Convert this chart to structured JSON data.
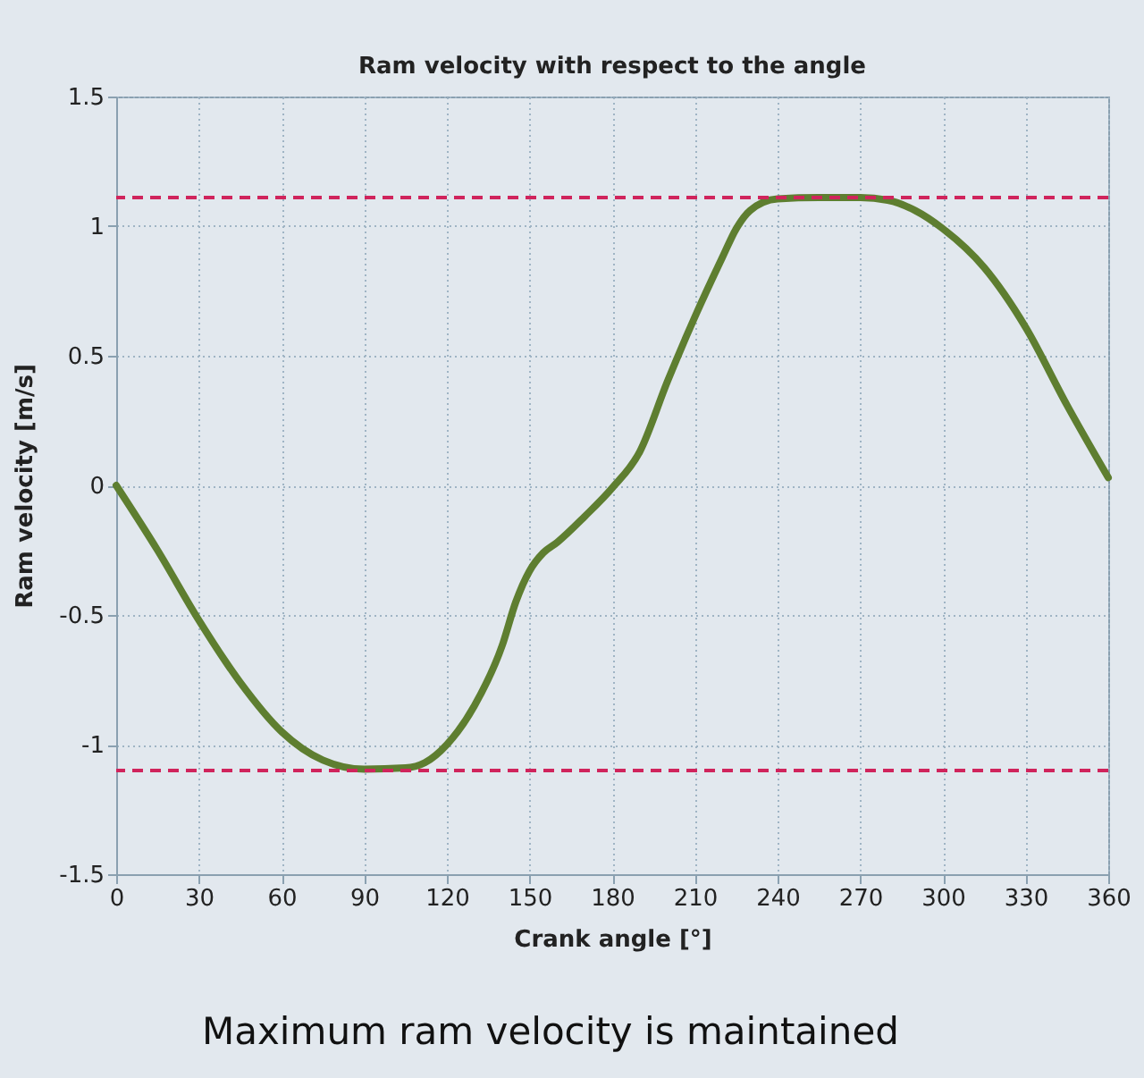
{
  "chart_data": {
    "type": "line",
    "title": "Ram velocity with respect to the angle",
    "xlabel": "Crank angle [°]",
    "ylabel": "Ram velocity [m/s]",
    "x": [
      0,
      15,
      30,
      45,
      60,
      75,
      90,
      105,
      112,
      120,
      130,
      140,
      145,
      150,
      155,
      160,
      170,
      180,
      190,
      200,
      210,
      220,
      225,
      230,
      240,
      255,
      270,
      280,
      290,
      300,
      315,
      330,
      345,
      360
    ],
    "series": [
      {
        "color": "#5e7e30",
        "values": [
          0,
          -0.25,
          -0.52,
          -0.76,
          -0.95,
          -1.06,
          -1.095,
          -1.09,
          -1.07,
          -1.0,
          -0.85,
          -0.62,
          -0.45,
          -0.33,
          -0.26,
          -0.22,
          -0.12,
          -0.01,
          0.13,
          0.4,
          0.65,
          0.88,
          0.99,
          1.06,
          1.105,
          1.11,
          1.11,
          1.1,
          1.06,
          0.99,
          0.84,
          0.61,
          0.31,
          0.03
        ]
      }
    ],
    "xlim": [
      0,
      360
    ],
    "xticks": [
      0,
      30,
      60,
      90,
      120,
      150,
      180,
      210,
      240,
      270,
      300,
      330,
      360
    ],
    "ylim": [
      -1.5,
      1.5
    ],
    "yticks": [
      -1.5,
      -1,
      -0.5,
      0,
      0.5,
      1,
      1.5
    ],
    "grid": true,
    "marker": "none",
    "line_style": "solid",
    "ref_lines": [
      {
        "axis": "y",
        "value": 1.11,
        "color": "#d0245c",
        "line_style": "dashed"
      },
      {
        "axis": "y",
        "value": -1.1,
        "color": "#d0245c",
        "line_style": "dashed"
      }
    ],
    "annotations": [
      "Maximum ram velocity is maintained"
    ]
  }
}
